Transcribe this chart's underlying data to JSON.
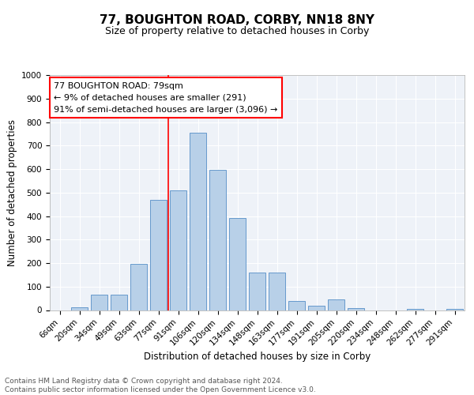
{
  "title1": "77, BOUGHTON ROAD, CORBY, NN18 8NY",
  "title2": "Size of property relative to detached houses in Corby",
  "xlabel": "Distribution of detached houses by size in Corby",
  "ylabel": "Number of detached properties",
  "categories": [
    "6sqm",
    "20sqm",
    "34sqm",
    "49sqm",
    "63sqm",
    "77sqm",
    "91sqm",
    "106sqm",
    "120sqm",
    "134sqm",
    "148sqm",
    "163sqm",
    "177sqm",
    "191sqm",
    "205sqm",
    "220sqm",
    "234sqm",
    "248sqm",
    "262sqm",
    "277sqm",
    "291sqm"
  ],
  "values": [
    0,
    12,
    65,
    65,
    198,
    470,
    510,
    755,
    595,
    390,
    160,
    160,
    40,
    20,
    45,
    10,
    0,
    0,
    5,
    0,
    5
  ],
  "bar_color": "#b8d0e8",
  "bar_edge_color": "#6699cc",
  "vline_color": "red",
  "vline_x_index": 5,
  "annotation_text": "77 BOUGHTON ROAD: 79sqm\n← 9% of detached houses are smaller (291)\n91% of semi-detached houses are larger (3,096) →",
  "annotation_box_color": "white",
  "annotation_box_edge_color": "red",
  "ylim": [
    0,
    1000
  ],
  "yticks": [
    0,
    100,
    200,
    300,
    400,
    500,
    600,
    700,
    800,
    900,
    1000
  ],
  "footer_text": "Contains HM Land Registry data © Crown copyright and database right 2024.\nContains public sector information licensed under the Open Government Licence v3.0.",
  "bg_color": "#eef2f8",
  "grid_color": "white",
  "title1_fontsize": 11,
  "title2_fontsize": 9,
  "xlabel_fontsize": 8.5,
  "ylabel_fontsize": 8.5,
  "tick_fontsize": 7.5,
  "annotation_fontsize": 8,
  "footer_fontsize": 6.5
}
